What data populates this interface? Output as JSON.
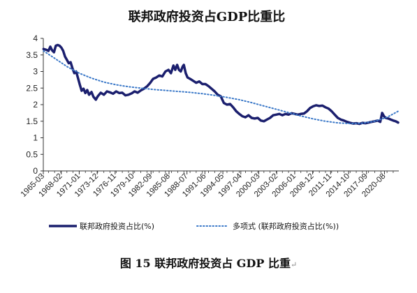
{
  "caption": {
    "text": "图 15 联邦政府投资占 GDP 比重",
    "return_mark": "↵"
  },
  "chart_data": {
    "type": "line",
    "title": "联邦政府投资占GDP比重比",
    "xlabel": "",
    "ylabel": "",
    "ylim": [
      0,
      4
    ],
    "yticks": [
      "0",
      "0.5",
      "1",
      "1.5",
      "2",
      "2.5",
      "3",
      "3.5",
      "4"
    ],
    "x_range": [
      "1965-03",
      "2022-12"
    ],
    "xtick_labels": [
      "1965-03",
      "1968-02",
      "1971-01",
      "1973-12",
      "1976-11",
      "1979-10",
      "1982-09",
      "1985-08",
      "1988-07",
      "1991-06",
      "1994-05",
      "1997-04",
      "2000-03",
      "2003-02",
      "2006-01",
      "2008-12",
      "2011-11",
      "2014-10",
      "2017-09",
      "2020-08"
    ],
    "grid": false,
    "legend_position": "bottom",
    "series": [
      {
        "name": "联邦政府投资占比(%)",
        "style": "solid",
        "color": "#1b1f6e",
        "points": [
          [
            1965.2,
            3.68
          ],
          [
            1965.7,
            3.65
          ],
          [
            1966.0,
            3.62
          ],
          [
            1966.3,
            3.75
          ],
          [
            1966.6,
            3.64
          ],
          [
            1966.9,
            3.58
          ],
          [
            1967.2,
            3.78
          ],
          [
            1967.5,
            3.8
          ],
          [
            1967.8,
            3.78
          ],
          [
            1968.1,
            3.72
          ],
          [
            1968.4,
            3.62
          ],
          [
            1968.7,
            3.45
          ],
          [
            1969.0,
            3.35
          ],
          [
            1969.3,
            3.25
          ],
          [
            1969.6,
            3.28
          ],
          [
            1969.9,
            3.1
          ],
          [
            1970.2,
            2.95
          ],
          [
            1970.5,
            3.0
          ],
          [
            1970.8,
            2.8
          ],
          [
            1971.1,
            2.6
          ],
          [
            1971.4,
            2.42
          ],
          [
            1971.7,
            2.48
          ],
          [
            1972.0,
            2.35
          ],
          [
            1972.3,
            2.44
          ],
          [
            1972.6,
            2.3
          ],
          [
            1973.0,
            2.38
          ],
          [
            1973.3,
            2.24
          ],
          [
            1973.7,
            2.15
          ],
          [
            1974.0,
            2.25
          ],
          [
            1974.5,
            2.36
          ],
          [
            1975.0,
            2.3
          ],
          [
            1975.5,
            2.4
          ],
          [
            1976.0,
            2.37
          ],
          [
            1976.5,
            2.33
          ],
          [
            1977.0,
            2.4
          ],
          [
            1977.5,
            2.35
          ],
          [
            1978.0,
            2.36
          ],
          [
            1978.5,
            2.28
          ],
          [
            1979.0,
            2.3
          ],
          [
            1979.5,
            2.34
          ],
          [
            1980.0,
            2.4
          ],
          [
            1980.5,
            2.36
          ],
          [
            1981.0,
            2.43
          ],
          [
            1981.5,
            2.48
          ],
          [
            1982.0,
            2.55
          ],
          [
            1982.5,
            2.65
          ],
          [
            1983.0,
            2.78
          ],
          [
            1983.5,
            2.82
          ],
          [
            1984.0,
            2.88
          ],
          [
            1984.5,
            2.85
          ],
          [
            1985.0,
            3.0
          ],
          [
            1985.5,
            3.05
          ],
          [
            1985.9,
            2.95
          ],
          [
            1986.3,
            3.18
          ],
          [
            1986.6,
            3.05
          ],
          [
            1986.9,
            3.2
          ],
          [
            1987.2,
            3.05
          ],
          [
            1987.5,
            3.0
          ],
          [
            1987.8,
            3.15
          ],
          [
            1988.0,
            3.2
          ],
          [
            1988.3,
            2.95
          ],
          [
            1988.6,
            2.82
          ],
          [
            1989.0,
            2.78
          ],
          [
            1989.5,
            2.72
          ],
          [
            1990.0,
            2.66
          ],
          [
            1990.5,
            2.7
          ],
          [
            1991.0,
            2.62
          ],
          [
            1991.5,
            2.62
          ],
          [
            1992.0,
            2.56
          ],
          [
            1992.5,
            2.48
          ],
          [
            1993.0,
            2.4
          ],
          [
            1993.5,
            2.3
          ],
          [
            1994.0,
            2.25
          ],
          [
            1994.5,
            2.05
          ],
          [
            1995.0,
            2.0
          ],
          [
            1995.5,
            2.02
          ],
          [
            1996.0,
            1.92
          ],
          [
            1996.5,
            1.8
          ],
          [
            1997.0,
            1.72
          ],
          [
            1997.5,
            1.65
          ],
          [
            1998.0,
            1.62
          ],
          [
            1998.5,
            1.68
          ],
          [
            1999.0,
            1.6
          ],
          [
            1999.5,
            1.58
          ],
          [
            2000.0,
            1.6
          ],
          [
            2000.5,
            1.52
          ],
          [
            2001.0,
            1.5
          ],
          [
            2001.5,
            1.55
          ],
          [
            2002.0,
            1.6
          ],
          [
            2002.5,
            1.68
          ],
          [
            2003.0,
            1.7
          ],
          [
            2003.5,
            1.72
          ],
          [
            2004.0,
            1.68
          ],
          [
            2004.5,
            1.72
          ],
          [
            2005.0,
            1.7
          ],
          [
            2005.5,
            1.74
          ],
          [
            2006.0,
            1.72
          ],
          [
            2006.5,
            1.7
          ],
          [
            2007.0,
            1.72
          ],
          [
            2007.5,
            1.73
          ],
          [
            2008.0,
            1.8
          ],
          [
            2008.5,
            1.9
          ],
          [
            2009.0,
            1.95
          ],
          [
            2009.5,
            1.98
          ],
          [
            2010.0,
            1.96
          ],
          [
            2010.5,
            1.97
          ],
          [
            2011.0,
            1.92
          ],
          [
            2011.5,
            1.88
          ],
          [
            2012.0,
            1.8
          ],
          [
            2012.5,
            1.7
          ],
          [
            2013.0,
            1.6
          ],
          [
            2013.5,
            1.55
          ],
          [
            2014.0,
            1.52
          ],
          [
            2014.5,
            1.48
          ],
          [
            2015.0,
            1.45
          ],
          [
            2015.5,
            1.43
          ],
          [
            2016.0,
            1.44
          ],
          [
            2016.5,
            1.42
          ],
          [
            2017.0,
            1.45
          ],
          [
            2017.5,
            1.44
          ],
          [
            2018.0,
            1.46
          ],
          [
            2018.5,
            1.48
          ],
          [
            2019.0,
            1.5
          ],
          [
            2019.5,
            1.52
          ],
          [
            2019.9,
            1.48
          ],
          [
            2020.2,
            1.75
          ],
          [
            2020.5,
            1.65
          ],
          [
            2020.8,
            1.6
          ],
          [
            2021.2,
            1.58
          ],
          [
            2021.6,
            1.55
          ],
          [
            2022.0,
            1.52
          ],
          [
            2022.4,
            1.5
          ],
          [
            2022.8,
            1.46
          ]
        ]
      },
      {
        "name": "多项式 (联邦政府投资占比(%))",
        "style": "dotted",
        "color": "#3a78c8",
        "points": [
          [
            1965.2,
            3.62
          ],
          [
            1967,
            3.4
          ],
          [
            1969,
            3.15
          ],
          [
            1971,
            2.95
          ],
          [
            1973,
            2.8
          ],
          [
            1975,
            2.68
          ],
          [
            1977,
            2.6
          ],
          [
            1979,
            2.54
          ],
          [
            1981,
            2.5
          ],
          [
            1983,
            2.46
          ],
          [
            1985,
            2.43
          ],
          [
            1987,
            2.4
          ],
          [
            1989,
            2.37
          ],
          [
            1991,
            2.33
          ],
          [
            1993,
            2.28
          ],
          [
            1995,
            2.22
          ],
          [
            1997,
            2.15
          ],
          [
            1999,
            2.06
          ],
          [
            2001,
            1.96
          ],
          [
            2003,
            1.86
          ],
          [
            2005,
            1.76
          ],
          [
            2007,
            1.66
          ],
          [
            2009,
            1.57
          ],
          [
            2011,
            1.5
          ],
          [
            2013,
            1.45
          ],
          [
            2015,
            1.43
          ],
          [
            2017,
            1.44
          ],
          [
            2019,
            1.5
          ],
          [
            2021,
            1.62
          ],
          [
            2022.8,
            1.8
          ]
        ]
      }
    ]
  }
}
